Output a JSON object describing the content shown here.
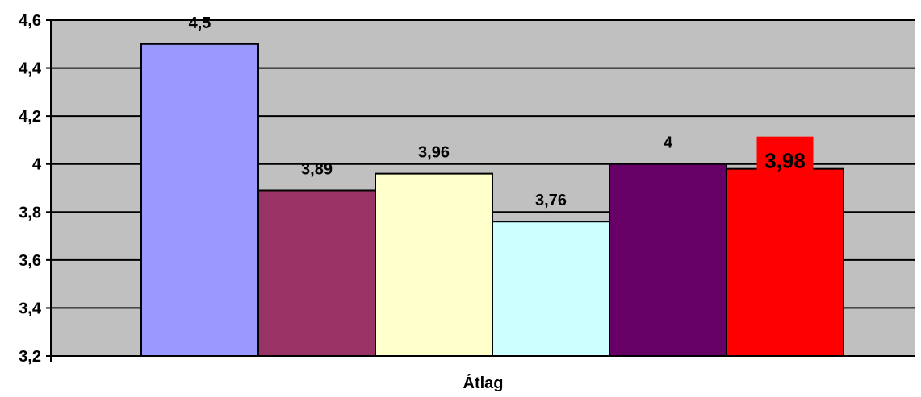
{
  "chart_data": {
    "type": "bar",
    "category": "Átlag",
    "ylim": [
      3.2,
      4.6
    ],
    "yticks": [
      3.2,
      3.4,
      3.6,
      3.8,
      4.0,
      4.2,
      4.4,
      4.6
    ],
    "ytick_labels": [
      "3,2",
      "3,4",
      "3,6",
      "3,8",
      "4",
      "4,2",
      "4,4",
      "4,6"
    ],
    "grid": true,
    "legend": "none",
    "plot_background": "#c0c0c0",
    "bars": [
      {
        "value": 4.5,
        "label": "4,5",
        "color": "#9999ff",
        "highlight": false
      },
      {
        "value": 3.89,
        "label": "3,89",
        "color": "#993366",
        "highlight": false
      },
      {
        "value": 3.96,
        "label": "3,96",
        "color": "#ffffcc",
        "highlight": false
      },
      {
        "value": 3.76,
        "label": "3,76",
        "color": "#ccffff",
        "highlight": false
      },
      {
        "value": 4.0,
        "label": "4",
        "color": "#660066",
        "highlight": false
      },
      {
        "value": 3.98,
        "label": "3,98",
        "color": "#ff0000",
        "highlight": true,
        "label_background": "#ff0000"
      }
    ]
  }
}
